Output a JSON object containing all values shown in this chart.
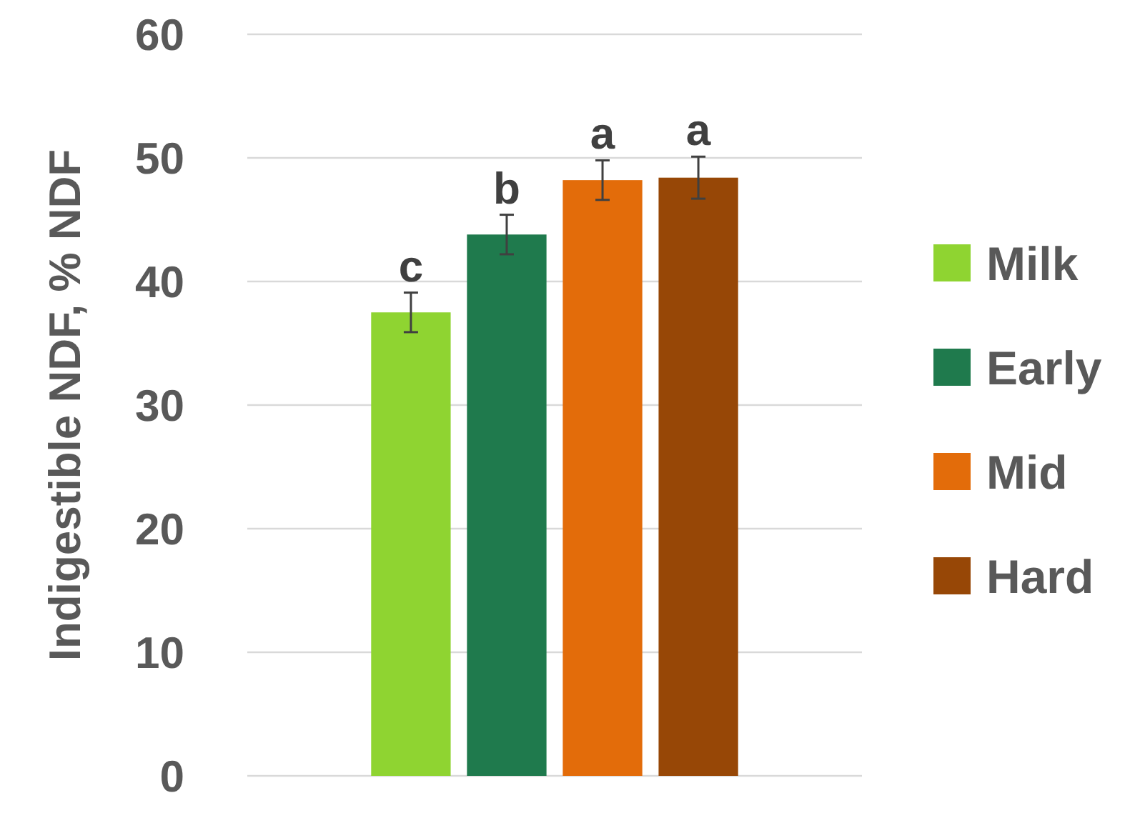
{
  "chart_data": {
    "type": "bar",
    "ylabel": "Indigestible NDF, % NDF",
    "categories": [
      null
    ],
    "series": [
      {
        "name": "Milk",
        "color": "#8fd431",
        "values": [
          37.5
        ],
        "errors": [
          1.6
        ]
      },
      {
        "name": "Early",
        "color": "#1f7a4d",
        "values": [
          43.8
        ],
        "errors": [
          1.6
        ]
      },
      {
        "name": "Mid",
        "color": "#e36c0a",
        "values": [
          48.2
        ],
        "errors": [
          1.6
        ]
      },
      {
        "name": "Hard",
        "color": "#974706",
        "values": [
          48.4
        ],
        "errors": [
          1.7
        ]
      }
    ],
    "annotations": [
      "c",
      "b",
      "a",
      "a"
    ],
    "ylim": [
      0,
      60
    ],
    "yticks": [
      0,
      10,
      20,
      30,
      40,
      50,
      60
    ],
    "grid": "y",
    "legend": "right"
  }
}
